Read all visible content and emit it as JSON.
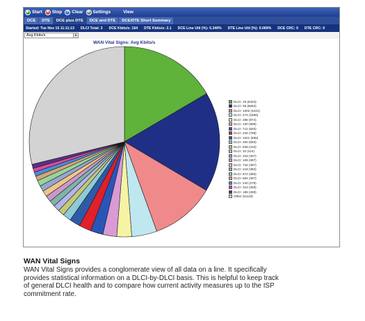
{
  "toolbar": {
    "start": "Start",
    "stop": "Stop",
    "clear": "Clear",
    "settings": "Settings",
    "view": "View"
  },
  "tabs": [
    "DCE",
    "DTE",
    "DCE plus DTE",
    "DCE and DTE",
    "DCE/DTE Short Summary"
  ],
  "status": {
    "started": "Started: Tue Nov 15 11:11:13",
    "dlci_total": "DLCI Total: 3",
    "dce_kbits": "DCE Kbits/s: 164",
    "dte_kbits": "DTE Kbits/s: 2.1",
    "dce_line_util": "DCE Line Util (%): 5.340%",
    "dte_line_util": "DTE Line Util (%): 0.069%",
    "dce_crc": "DCE CRC: 0",
    "dte_crc": "DTE CRC: 0"
  },
  "selector": {
    "value": "Avg Kbits/s"
  },
  "chart_data": {
    "type": "pie",
    "title": "WAN Vital Signs: Avg Kbits/s",
    "legend_position": "right",
    "slices": [
      {
        "label": "DLCI: 16 (6404)",
        "value": 6404,
        "color": "#5fb23a"
      },
      {
        "label": "DLCI: 36 (6552)",
        "value": 6552,
        "color": "#1f2f86"
      },
      {
        "label": "DLCI: 1002 (4231)",
        "value": 4231,
        "color": "#f08a8a"
      },
      {
        "label": "DLCI: 274 (1658)",
        "value": 1658,
        "color": "#bfe7ef"
      },
      {
        "label": "DLCI: 286 (974)",
        "value": 974,
        "color": "#f6f3a4"
      },
      {
        "label": "DLCI: 100 (909)",
        "value": 909,
        "color": "#d99ad6"
      },
      {
        "label": "DLCI: 712 (820)",
        "value": 820,
        "color": "#2a55b8"
      },
      {
        "label": "DLCI: 234 (798)",
        "value": 798,
        "color": "#e0202a"
      },
      {
        "label": "DLCI: 1021 (699)",
        "value": 699,
        "color": "#2e5aa8"
      },
      {
        "label": "DLCI: 300 (550)",
        "value": 550,
        "color": "#8ecbd6"
      },
      {
        "label": "DLCI: 638 (416)",
        "value": 416,
        "color": "#c3c975"
      },
      {
        "label": "DLCI: 32 (414)",
        "value": 414,
        "color": "#b5b5e8"
      },
      {
        "label": "DLCI: 318 (407)",
        "value": 407,
        "color": "#7fb3a8"
      },
      {
        "label": "DLCI: 106 (397)",
        "value": 397,
        "color": "#c79ac9"
      },
      {
        "label": "DLCI: 742 (397)",
        "value": 397,
        "color": "#f0c48a"
      },
      {
        "label": "DLCI: 218 (382)",
        "value": 382,
        "color": "#93a7cf"
      },
      {
        "label": "DLCI: 672 (380)",
        "value": 380,
        "color": "#9ad39a"
      },
      {
        "label": "DLCI: 664 (307)",
        "value": 307,
        "color": "#cfa77a"
      },
      {
        "label": "DLCI: 240 (279)",
        "value": 279,
        "color": "#4a8ed8"
      },
      {
        "label": "DLCI: 314 (259)",
        "value": 259,
        "color": "#d84c9c"
      },
      {
        "label": "DLCI: 186 (269)",
        "value": 269,
        "color": "#5c2f88"
      },
      {
        "label": "Other (11133)",
        "value": 11133,
        "color": "#d3d3d3"
      }
    ]
  },
  "caption": {
    "title": "WAN Vital Signs",
    "lines": [
      "WAN Vital Signs provides a conglomerate view of all data on a line. It specifically",
      "provides statistical information on a DLCI-by-DLCI basis. This is helpful to keep track",
      "of general DLCI health and to compare how current activity measures up to the ISP",
      "commitment rate."
    ]
  }
}
